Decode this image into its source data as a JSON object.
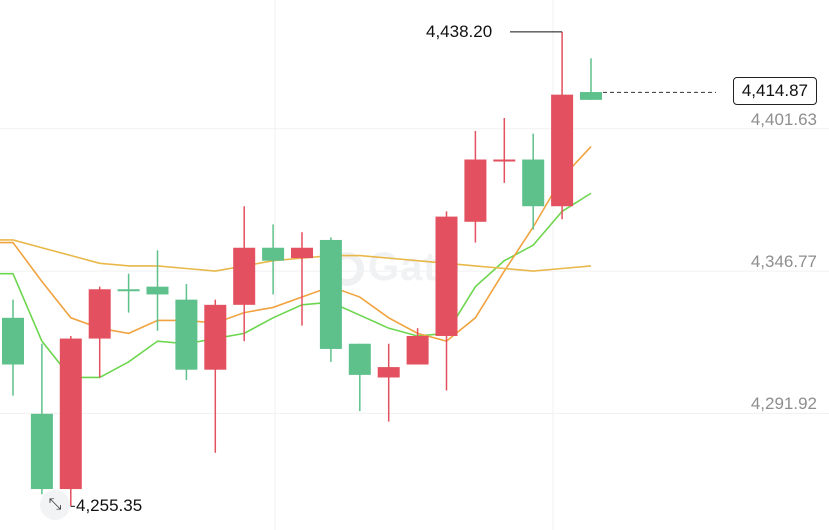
{
  "chart_data": {
    "type": "candlestick",
    "y_axis": {
      "ticks": [
        "4,401.63",
        "4,346.77",
        "4,291.92"
      ],
      "tick_values": [
        4401.63,
        4346.77,
        4291.92
      ],
      "position": "right"
    },
    "ylim": [
      4252,
      4442
    ],
    "grid": true,
    "current_price": "4,414.87",
    "current_price_value": 4414.87,
    "high_label": "4,438.20",
    "high_value": 4438.2,
    "low_label": "4,255.35",
    "low_value": 4255.35,
    "candles": [
      {
        "open": 4310,
        "close": 4328,
        "high": 4335,
        "low": 4298,
        "color": "up"
      },
      {
        "open": 4291,
        "close": 4262,
        "high": 4318,
        "low": 4260,
        "color": "up"
      },
      {
        "open": 4262,
        "close": 4320,
        "high": 4321,
        "low": 4255.35,
        "color": "down"
      },
      {
        "open": 4320,
        "close": 4339,
        "high": 4340,
        "low": 4305,
        "color": "down"
      },
      {
        "open": 4339,
        "close": 4339,
        "high": 4345,
        "low": 4330,
        "color": "up"
      },
      {
        "open": 4337,
        "close": 4340,
        "high": 4354,
        "low": 4323,
        "color": "up"
      },
      {
        "open": 4308,
        "close": 4335,
        "high": 4341,
        "low": 4304,
        "color": "up"
      },
      {
        "open": 4308,
        "close": 4333,
        "high": 4335,
        "low": 4276,
        "color": "down"
      },
      {
        "open": 4333,
        "close": 4355,
        "high": 4371,
        "low": 4319,
        "color": "down"
      },
      {
        "open": 4350,
        "close": 4355,
        "high": 4364,
        "low": 4337,
        "color": "up"
      },
      {
        "open": 4351,
        "close": 4355,
        "high": 4361,
        "low": 4325,
        "color": "down"
      },
      {
        "open": 4316,
        "close": 4358,
        "high": 4359,
        "low": 4311,
        "color": "up"
      },
      {
        "open": 4306,
        "close": 4318,
        "high": 4318,
        "low": 4292,
        "color": "up"
      },
      {
        "open": 4305,
        "close": 4309,
        "high": 4318,
        "low": 4288,
        "color": "down"
      },
      {
        "open": 4310,
        "close": 4321,
        "high": 4324,
        "low": 4310,
        "color": "down"
      },
      {
        "open": 4321,
        "close": 4367,
        "high": 4369,
        "low": 4300,
        "color": "down"
      },
      {
        "open": 4365,
        "close": 4389,
        "high": 4400,
        "low": 4357,
        "color": "down"
      },
      {
        "open": 4389,
        "close": 4389,
        "high": 4405,
        "low": 4380,
        "color": "down"
      },
      {
        "open": 4371,
        "close": 4389,
        "high": 4399,
        "low": 4362,
        "color": "up"
      },
      {
        "open": 4371,
        "close": 4414,
        "high": 4438.2,
        "low": 4366,
        "color": "down"
      },
      {
        "open": 4412,
        "close": 4415,
        "high": 4428,
        "low": 4412,
        "color": "up"
      }
    ],
    "series": [
      {
        "color": "#6dd64f",
        "values": [
          4345,
          4319,
          4305,
          4305,
          4311,
          4319,
          4318,
          4320,
          4322,
          4328,
          4333,
          4334,
          4329,
          4324,
          4321,
          4322,
          4340,
          4350,
          4356,
          4369,
          4376
        ]
      },
      {
        "color": "#f0a340",
        "values": [
          4357,
          4342,
          4328,
          4324,
          4322,
          4327,
          4327,
          4326,
          4330,
          4332,
          4336,
          4340,
          4336,
          4328,
          4322,
          4319,
          4328,
          4346,
          4363,
          4382,
          4394
        ]
      },
      {
        "color": "#e8b84b",
        "values": [
          4358,
          4355,
          4352,
          4349,
          4348,
          4348,
          4347,
          4346,
          4348,
          4350,
          4351,
          4352,
          4352,
          4351,
          4350,
          4349,
          4348,
          4347,
          4346,
          4347,
          4348
        ]
      }
    ],
    "colors": {
      "up": "#5ec18b",
      "down": "#e3505f"
    }
  },
  "watermark": "Gate",
  "expand_icon": "expand-icon",
  "expand_glyph": "⤡"
}
